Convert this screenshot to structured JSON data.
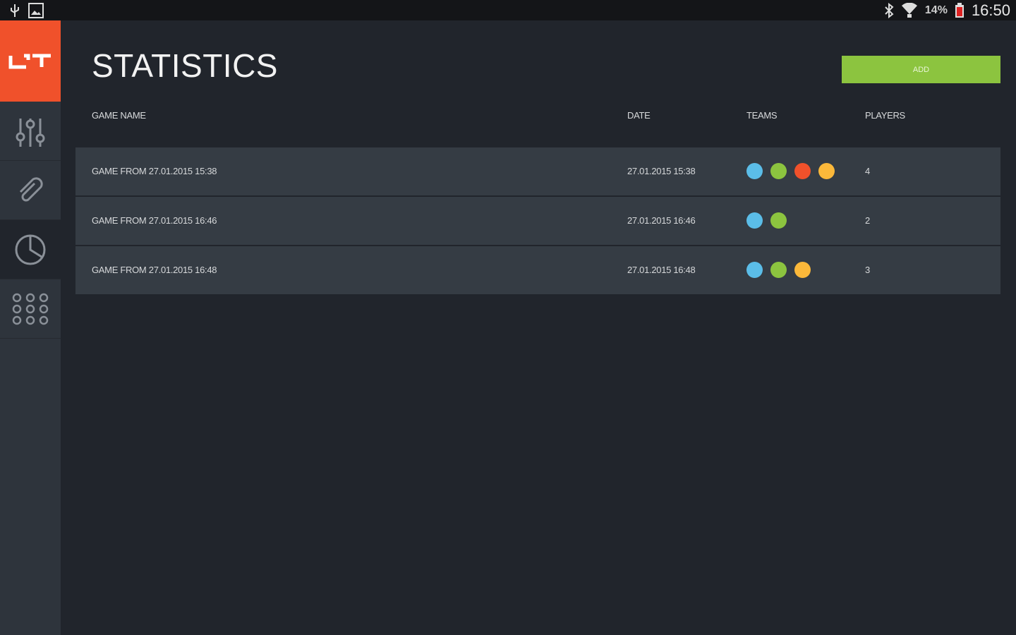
{
  "status_bar": {
    "battery": "14%",
    "time": "16:50"
  },
  "header": {
    "title": "STATISTICS",
    "add_label": "ADD"
  },
  "table": {
    "columns": [
      "GAME NAME",
      "DATE",
      "TEAMS",
      "PLAYERS"
    ],
    "rows": [
      {
        "name": "GAME FROM 27.01.2015 15:38",
        "date": "27.01.2015 15:38",
        "teams": [
          "#5bbde8",
          "#8cc43f",
          "#f0512b",
          "#fbb83a"
        ],
        "players": "4"
      },
      {
        "name": "GAME FROM 27.01.2015 16:46",
        "date": "27.01.2015 16:46",
        "teams": [
          "#5bbde8",
          "#8cc43f"
        ],
        "players": "2"
      },
      {
        "name": "GAME FROM 27.01.2015 16:48",
        "date": "27.01.2015 16:48",
        "teams": [
          "#5bbde8",
          "#8cc43f",
          "#fbb83a"
        ],
        "players": "3"
      }
    ]
  },
  "sidebar": {
    "items": [
      {
        "icon": "sliders-icon"
      },
      {
        "icon": "paperclip-icon"
      },
      {
        "icon": "pie-chart-icon",
        "active": true
      },
      {
        "icon": "grid-icon"
      }
    ]
  },
  "colors": {
    "brand": "#f0512b",
    "accent": "#8cc43f"
  }
}
